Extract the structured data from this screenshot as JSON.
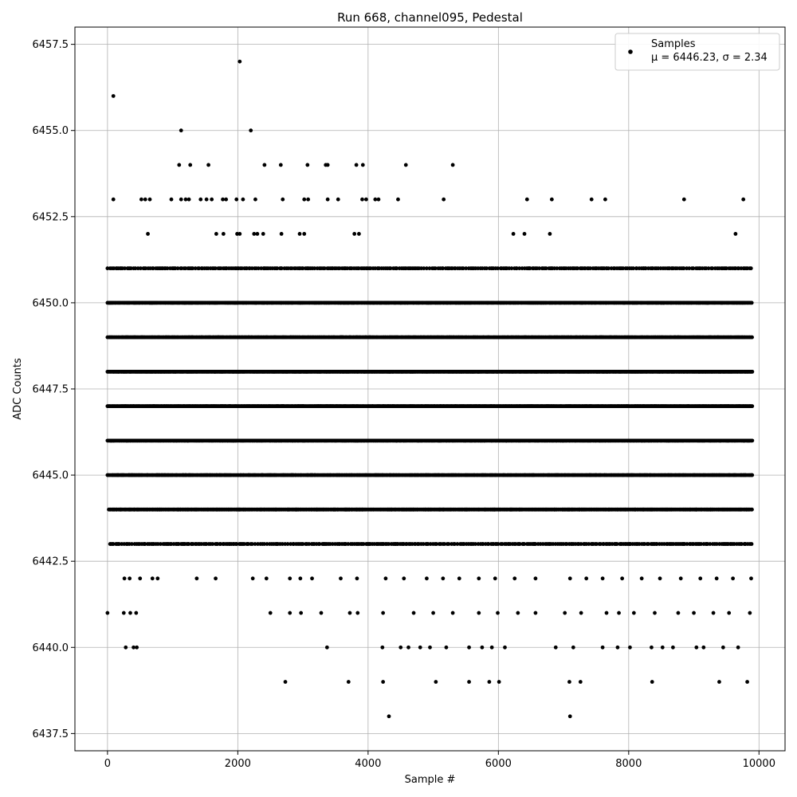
{
  "chart_data": {
    "type": "scatter",
    "title": "Run 668, channel095, Pedestal",
    "xlabel": "Sample #",
    "ylabel": "ADC Counts",
    "xlim": [
      -500,
      10400
    ],
    "ylim": [
      6437.0,
      6458.0
    ],
    "xticks": [
      0,
      2000,
      4000,
      6000,
      8000,
      10000
    ],
    "yticks": [
      6437.5,
      6440.0,
      6442.5,
      6445.0,
      6447.5,
      6450.0,
      6452.5,
      6455.0,
      6457.5
    ],
    "xtick_labels": [
      "0",
      "2000",
      "4000",
      "6000",
      "8000",
      "10000"
    ],
    "ytick_labels": [
      "6437.5",
      "6440.0",
      "6442.5",
      "6445.0",
      "6447.5",
      "6450.0",
      "6452.5",
      "6455.0",
      "6457.5"
    ],
    "grid": true,
    "legend": {
      "placement": "top-right",
      "entries": [
        {
          "label": "Samples",
          "stats": "μ = 6446.23, σ = 2.34"
        }
      ]
    },
    "series": [
      {
        "name": "Samples",
        "color": "#000000",
        "x_range": [
          0,
          9900
        ],
        "points": [
          [
            0,
            6441
          ],
          [
            90,
            6456
          ],
          [
            90,
            6453
          ],
          [
            2030,
            6457
          ],
          [
            2200,
            6455
          ],
          [
            1130,
            6455
          ],
          [
            1100,
            6454
          ],
          [
            1270,
            6454
          ],
          [
            1550,
            6454
          ],
          [
            2410,
            6454
          ],
          [
            2660,
            6454
          ],
          [
            3070,
            6454
          ],
          [
            3350,
            6454
          ],
          [
            3380,
            6454
          ],
          [
            3820,
            6454
          ],
          [
            3920,
            6454
          ],
          [
            4580,
            6454
          ],
          [
            5300,
            6454
          ],
          [
            520,
            6453
          ],
          [
            580,
            6453
          ],
          [
            650,
            6453
          ],
          [
            980,
            6453
          ],
          [
            1130,
            6453
          ],
          [
            1200,
            6453
          ],
          [
            1250,
            6453
          ],
          [
            1430,
            6453
          ],
          [
            1520,
            6453
          ],
          [
            1600,
            6453
          ],
          [
            1770,
            6453
          ],
          [
            1820,
            6453
          ],
          [
            1980,
            6453
          ],
          [
            2080,
            6453
          ],
          [
            2270,
            6453
          ],
          [
            2690,
            6453
          ],
          [
            3020,
            6453
          ],
          [
            3080,
            6453
          ],
          [
            3380,
            6453
          ],
          [
            3540,
            6453
          ],
          [
            3910,
            6453
          ],
          [
            3970,
            6453
          ],
          [
            4110,
            6453
          ],
          [
            4160,
            6453
          ],
          [
            4460,
            6453
          ],
          [
            5160,
            6453
          ],
          [
            6440,
            6453
          ],
          [
            6820,
            6453
          ],
          [
            7430,
            6453
          ],
          [
            7640,
            6453
          ],
          [
            8850,
            6453
          ],
          [
            9760,
            6453
          ],
          [
            620,
            6452
          ],
          [
            1670,
            6452
          ],
          [
            1780,
            6452
          ],
          [
            1990,
            6452
          ],
          [
            2030,
            6452
          ],
          [
            2250,
            6452
          ],
          [
            2300,
            6452
          ],
          [
            2390,
            6452
          ],
          [
            2670,
            6452
          ],
          [
            2950,
            6452
          ],
          [
            3020,
            6452
          ],
          [
            3790,
            6452
          ],
          [
            3860,
            6452
          ],
          [
            6230,
            6452
          ],
          [
            6400,
            6452
          ],
          [
            6790,
            6452
          ],
          [
            9640,
            6452
          ],
          [
            2730,
            6439
          ],
          [
            3700,
            6439
          ],
          [
            4230,
            6439
          ],
          [
            5040,
            6439
          ],
          [
            5550,
            6439
          ],
          [
            5860,
            6439
          ],
          [
            6010,
            6439
          ],
          [
            7090,
            6439
          ],
          [
            7260,
            6439
          ],
          [
            8360,
            6439
          ],
          [
            9390,
            6439
          ],
          [
            9820,
            6439
          ],
          [
            4320,
            6438
          ],
          [
            7100,
            6438
          ],
          [
            280,
            6440
          ],
          [
            400,
            6440
          ],
          [
            450,
            6440
          ],
          [
            3370,
            6440
          ],
          [
            4220,
            6440
          ],
          [
            4500,
            6440
          ],
          [
            4620,
            6440
          ],
          [
            4800,
            6440
          ],
          [
            4950,
            6440
          ],
          [
            5200,
            6440
          ],
          [
            5550,
            6440
          ],
          [
            5750,
            6440
          ],
          [
            5900,
            6440
          ],
          [
            6100,
            6440
          ],
          [
            6880,
            6440
          ],
          [
            7150,
            6440
          ],
          [
            7600,
            6440
          ],
          [
            7830,
            6440
          ],
          [
            8020,
            6440
          ],
          [
            8350,
            6440
          ],
          [
            8520,
            6440
          ],
          [
            8680,
            6440
          ],
          [
            9040,
            6440
          ],
          [
            9150,
            6440
          ],
          [
            9450,
            6440
          ],
          [
            9680,
            6440
          ],
          [
            250,
            6441
          ],
          [
            350,
            6441
          ],
          [
            440,
            6441
          ],
          [
            2500,
            6441
          ],
          [
            2800,
            6441
          ],
          [
            2970,
            6441
          ],
          [
            3280,
            6441
          ],
          [
            3720,
            6441
          ],
          [
            3840,
            6441
          ],
          [
            4230,
            6441
          ],
          [
            4700,
            6441
          ],
          [
            5000,
            6441
          ],
          [
            5300,
            6441
          ],
          [
            5700,
            6441
          ],
          [
            5990,
            6441
          ],
          [
            6300,
            6441
          ],
          [
            6570,
            6441
          ],
          [
            7020,
            6441
          ],
          [
            7270,
            6441
          ],
          [
            7660,
            6441
          ],
          [
            7850,
            6441
          ],
          [
            8080,
            6441
          ],
          [
            8400,
            6441
          ],
          [
            8760,
            6441
          ],
          [
            9000,
            6441
          ],
          [
            9300,
            6441
          ],
          [
            9540,
            6441
          ],
          [
            9860,
            6441
          ],
          [
            260,
            6442
          ],
          [
            340,
            6442
          ],
          [
            500,
            6442
          ],
          [
            690,
            6442
          ],
          [
            770,
            6442
          ],
          [
            1370,
            6442
          ],
          [
            1660,
            6442
          ],
          [
            2230,
            6442
          ],
          [
            2440,
            6442
          ],
          [
            2800,
            6442
          ],
          [
            2960,
            6442
          ],
          [
            3140,
            6442
          ],
          [
            3580,
            6442
          ],
          [
            3830,
            6442
          ],
          [
            4270,
            6442
          ],
          [
            4550,
            6442
          ],
          [
            4900,
            6442
          ],
          [
            5150,
            6442
          ],
          [
            5400,
            6442
          ],
          [
            5700,
            6442
          ],
          [
            5950,
            6442
          ],
          [
            6250,
            6442
          ],
          [
            6570,
            6442
          ],
          [
            7100,
            6442
          ],
          [
            7350,
            6442
          ],
          [
            7600,
            6442
          ],
          [
            7900,
            6442
          ],
          [
            8200,
            6442
          ],
          [
            8480,
            6442
          ],
          [
            8800,
            6442
          ],
          [
            9100,
            6442
          ],
          [
            9350,
            6442
          ],
          [
            9600,
            6442
          ],
          [
            9880,
            6442
          ]
        ],
        "dense_levels": [
          {
            "y": 6443,
            "x_start": 40,
            "x_end": 9900,
            "density": "medium"
          },
          {
            "y": 6444,
            "x_start": 20,
            "x_end": 9900,
            "density": "high"
          },
          {
            "y": 6445,
            "x_start": 0,
            "x_end": 9900,
            "density": "high"
          },
          {
            "y": 6446,
            "x_start": 0,
            "x_end": 9900,
            "density": "very-high"
          },
          {
            "y": 6447,
            "x_start": 0,
            "x_end": 9900,
            "density": "very-high"
          },
          {
            "y": 6448,
            "x_start": 0,
            "x_end": 9900,
            "density": "very-high"
          },
          {
            "y": 6449,
            "x_start": 0,
            "x_end": 9900,
            "density": "high"
          },
          {
            "y": 6450,
            "x_start": 0,
            "x_end": 9900,
            "density": "high"
          },
          {
            "y": 6451,
            "x_start": 0,
            "x_end": 9900,
            "density": "medium"
          }
        ]
      }
    ]
  }
}
